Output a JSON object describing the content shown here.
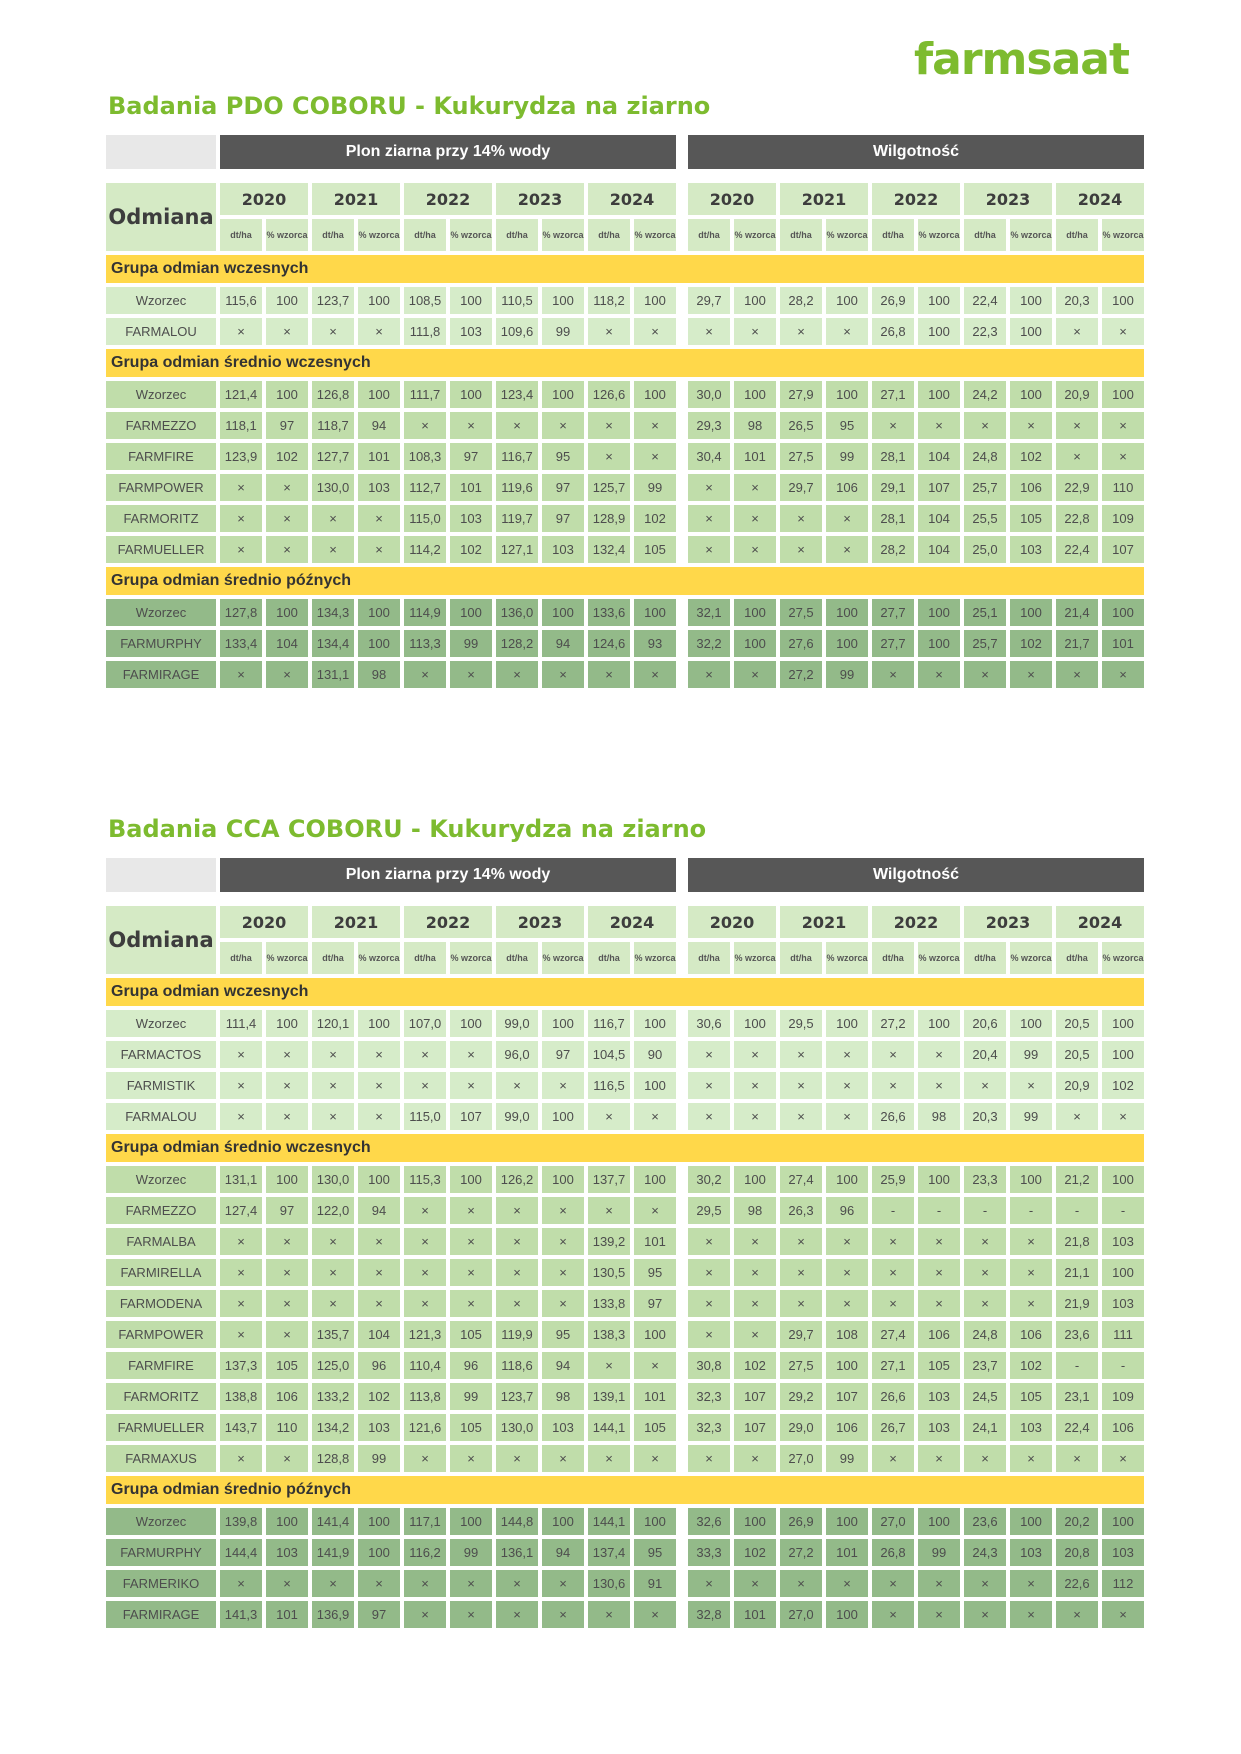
{
  "logo": "farmsaat",
  "headers": {
    "odmiana": "Odmiana",
    "plon": "Plon ziarna przy 14% wody",
    "wilgotnosc": "Wilgotność",
    "years": [
      "2020",
      "2021",
      "2022",
      "2023",
      "2024"
    ],
    "unit_dtha": "dt/ha",
    "unit_pct": "% wzorca"
  },
  "tables": [
    {
      "title": "Badania PDO COBORU - Kukurydza na ziarno",
      "groups": [
        {
          "name": "Grupa odmian wczesnych",
          "rows": [
            {
              "name": "Wzorzec",
              "values": [
                "115,6",
                "100",
                "123,7",
                "100",
                "108,5",
                "100",
                "110,5",
                "100",
                "118,2",
                "100",
                "29,7",
                "100",
                "28,2",
                "100",
                "26,9",
                "100",
                "22,4",
                "100",
                "20,3",
                "100"
              ]
            },
            {
              "name": "FARMALOU",
              "values": [
                "×",
                "×",
                "×",
                "×",
                "111,8",
                "103",
                "109,6",
                "99",
                "×",
                "×",
                "×",
                "×",
                "×",
                "×",
                "26,8",
                "100",
                "22,3",
                "100",
                "×",
                "×"
              ]
            }
          ]
        },
        {
          "name": "Grupa odmian średnio wczesnych",
          "rows": [
            {
              "name": "Wzorzec",
              "values": [
                "121,4",
                "100",
                "126,8",
                "100",
                "111,7",
                "100",
                "123,4",
                "100",
                "126,6",
                "100",
                "30,0",
                "100",
                "27,9",
                "100",
                "27,1",
                "100",
                "24,2",
                "100",
                "20,9",
                "100"
              ]
            },
            {
              "name": "FARMEZZO",
              "values": [
                "118,1",
                "97",
                "118,7",
                "94",
                "×",
                "×",
                "×",
                "×",
                "×",
                "×",
                "29,3",
                "98",
                "26,5",
                "95",
                "×",
                "×",
                "×",
                "×",
                "×",
                "×"
              ]
            },
            {
              "name": "FARMFIRE",
              "values": [
                "123,9",
                "102",
                "127,7",
                "101",
                "108,3",
                "97",
                "116,7",
                "95",
                "×",
                "×",
                "30,4",
                "101",
                "27,5",
                "99",
                "28,1",
                "104",
                "24,8",
                "102",
                "×",
                "×"
              ]
            },
            {
              "name": "FARMPOWER",
              "values": [
                "×",
                "×",
                "130,0",
                "103",
                "112,7",
                "101",
                "119,6",
                "97",
                "125,7",
                "99",
                "×",
                "×",
                "29,7",
                "106",
                "29,1",
                "107",
                "25,7",
                "106",
                "22,9",
                "110"
              ]
            },
            {
              "name": "FARMORITZ",
              "values": [
                "×",
                "×",
                "×",
                "×",
                "115,0",
                "103",
                "119,7",
                "97",
                "128,9",
                "102",
                "×",
                "×",
                "×",
                "×",
                "28,1",
                "104",
                "25,5",
                "105",
                "22,8",
                "109"
              ]
            },
            {
              "name": "FARMUELLER",
              "values": [
                "×",
                "×",
                "×",
                "×",
                "114,2",
                "102",
                "127,1",
                "103",
                "132,4",
                "105",
                "×",
                "×",
                "×",
                "×",
                "28,2",
                "104",
                "25,0",
                "103",
                "22,4",
                "107"
              ]
            }
          ]
        },
        {
          "name": "Grupa odmian średnio późnych",
          "rows": [
            {
              "name": "Wzorzec",
              "values": [
                "127,8",
                "100",
                "134,3",
                "100",
                "114,9",
                "100",
                "136,0",
                "100",
                "133,6",
                "100",
                "32,1",
                "100",
                "27,5",
                "100",
                "27,7",
                "100",
                "25,1",
                "100",
                "21,4",
                "100"
              ]
            },
            {
              "name": "FARMURPHY",
              "values": [
                "133,4",
                "104",
                "134,4",
                "100",
                "113,3",
                "99",
                "128,2",
                "94",
                "124,6",
                "93",
                "32,2",
                "100",
                "27,6",
                "100",
                "27,7",
                "100",
                "25,7",
                "102",
                "21,7",
                "101"
              ]
            },
            {
              "name": "FARMIRAGE",
              "values": [
                "×",
                "×",
                "131,1",
                "98",
                "×",
                "×",
                "×",
                "×",
                "×",
                "×",
                "×",
                "×",
                "27,2",
                "99",
                "×",
                "×",
                "×",
                "×",
                "×",
                "×"
              ]
            }
          ]
        }
      ]
    },
    {
      "title": "Badania CCA COBORU - Kukurydza na ziarno",
      "groups": [
        {
          "name": "Grupa odmian wczesnych",
          "rows": [
            {
              "name": "Wzorzec",
              "values": [
                "111,4",
                "100",
                "120,1",
                "100",
                "107,0",
                "100",
                "99,0",
                "100",
                "116,7",
                "100",
                "30,6",
                "100",
                "29,5",
                "100",
                "27,2",
                "100",
                "20,6",
                "100",
                "20,5",
                "100"
              ]
            },
            {
              "name": "FARMACTOS",
              "values": [
                "×",
                "×",
                "×",
                "×",
                "×",
                "×",
                "96,0",
                "97",
                "104,5",
                "90",
                "×",
                "×",
                "×",
                "×",
                "×",
                "×",
                "20,4",
                "99",
                "20,5",
                "100"
              ]
            },
            {
              "name": "FARMISTIK",
              "values": [
                "×",
                "×",
                "×",
                "×",
                "×",
                "×",
                "×",
                "×",
                "116,5",
                "100",
                "×",
                "×",
                "×",
                "×",
                "×",
                "×",
                "×",
                "×",
                "20,9",
                "102"
              ]
            },
            {
              "name": "FARMALOU",
              "values": [
                "×",
                "×",
                "×",
                "×",
                "115,0",
                "107",
                "99,0",
                "100",
                "×",
                "×",
                "×",
                "×",
                "×",
                "×",
                "26,6",
                "98",
                "20,3",
                "99",
                "×",
                "×"
              ]
            }
          ]
        },
        {
          "name": "Grupa odmian średnio wczesnych",
          "rows": [
            {
              "name": "Wzorzec",
              "values": [
                "131,1",
                "100",
                "130,0",
                "100",
                "115,3",
                "100",
                "126,2",
                "100",
                "137,7",
                "100",
                "30,2",
                "100",
                "27,4",
                "100",
                "25,9",
                "100",
                "23,3",
                "100",
                "21,2",
                "100"
              ]
            },
            {
              "name": "FARMEZZO",
              "values": [
                "127,4",
                "97",
                "122,0",
                "94",
                "×",
                "×",
                "×",
                "×",
                "×",
                "×",
                "29,5",
                "98",
                "26,3",
                "96",
                "-",
                "-",
                "-",
                "-",
                "-",
                "-"
              ]
            },
            {
              "name": "FARMALBA",
              "values": [
                "×",
                "×",
                "×",
                "×",
                "×",
                "×",
                "×",
                "×",
                "139,2",
                "101",
                "×",
                "×",
                "×",
                "×",
                "×",
                "×",
                "×",
                "×",
                "21,8",
                "103"
              ]
            },
            {
              "name": "FARMIRELLA",
              "values": [
                "×",
                "×",
                "×",
                "×",
                "×",
                "×",
                "×",
                "×",
                "130,5",
                "95",
                "×",
                "×",
                "×",
                "×",
                "×",
                "×",
                "×",
                "×",
                "21,1",
                "100"
              ]
            },
            {
              "name": "FARMODENA",
              "values": [
                "×",
                "×",
                "×",
                "×",
                "×",
                "×",
                "×",
                "×",
                "133,8",
                "97",
                "×",
                "×",
                "×",
                "×",
                "×",
                "×",
                "×",
                "×",
                "21,9",
                "103"
              ]
            },
            {
              "name": "FARMPOWER",
              "values": [
                "×",
                "×",
                "135,7",
                "104",
                "121,3",
                "105",
                "119,9",
                "95",
                "138,3",
                "100",
                "×",
                "×",
                "29,7",
                "108",
                "27,4",
                "106",
                "24,8",
                "106",
                "23,6",
                "111"
              ]
            },
            {
              "name": "FARMFIRE",
              "values": [
                "137,3",
                "105",
                "125,0",
                "96",
                "110,4",
                "96",
                "118,6",
                "94",
                "×",
                "×",
                "30,8",
                "102",
                "27,5",
                "100",
                "27,1",
                "105",
                "23,7",
                "102",
                "-",
                "-"
              ]
            },
            {
              "name": "FARMORITZ",
              "values": [
                "138,8",
                "106",
                "133,2",
                "102",
                "113,8",
                "99",
                "123,7",
                "98",
                "139,1",
                "101",
                "32,3",
                "107",
                "29,2",
                "107",
                "26,6",
                "103",
                "24,5",
                "105",
                "23,1",
                "109"
              ]
            },
            {
              "name": "FARMUELLER",
              "values": [
                "143,7",
                "110",
                "134,2",
                "103",
                "121,6",
                "105",
                "130,0",
                "103",
                "144,1",
                "105",
                "32,3",
                "107",
                "29,0",
                "106",
                "26,7",
                "103",
                "24,1",
                "103",
                "22,4",
                "106"
              ]
            },
            {
              "name": "FARMAXUS",
              "values": [
                "×",
                "×",
                "128,8",
                "99",
                "×",
                "×",
                "×",
                "×",
                "×",
                "×",
                "×",
                "×",
                "27,0",
                "99",
                "×",
                "×",
                "×",
                "×",
                "×",
                "×"
              ]
            }
          ]
        },
        {
          "name": "Grupa odmian średnio późnych",
          "rows": [
            {
              "name": "Wzorzec",
              "values": [
                "139,8",
                "100",
                "141,4",
                "100",
                "117,1",
                "100",
                "144,8",
                "100",
                "144,1",
                "100",
                "32,6",
                "100",
                "26,9",
                "100",
                "27,0",
                "100",
                "23,6",
                "100",
                "20,2",
                "100"
              ]
            },
            {
              "name": "FARMURPHY",
              "values": [
                "144,4",
                "103",
                "141,9",
                "100",
                "116,2",
                "99",
                "136,1",
                "94",
                "137,4",
                "95",
                "33,3",
                "102",
                "27,2",
                "101",
                "26,8",
                "99",
                "24,3",
                "103",
                "20,8",
                "103"
              ]
            },
            {
              "name": "FARMERIKO",
              "values": [
                "×",
                "×",
                "×",
                "×",
                "×",
                "×",
                "×",
                "×",
                "130,6",
                "91",
                "×",
                "×",
                "×",
                "×",
                "×",
                "×",
                "×",
                "×",
                "22,6",
                "112"
              ]
            },
            {
              "name": "FARMIRAGE",
              "values": [
                "141,3",
                "101",
                "136,9",
                "97",
                "×",
                "×",
                "×",
                "×",
                "×",
                "×",
                "32,8",
                "101",
                "27,0",
                "100",
                "×",
                "×",
                "×",
                "×",
                "×",
                "×"
              ]
            }
          ]
        }
      ]
    }
  ]
}
